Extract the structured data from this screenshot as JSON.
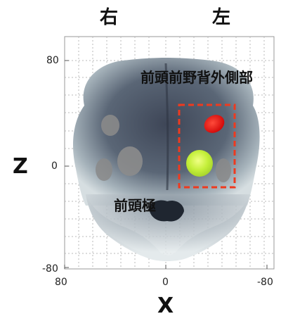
{
  "labels": {
    "right_side": "右",
    "left_side": "左",
    "dlpfc": "前頭前野背外側部",
    "frontal_pole": "前頭極",
    "z_axis": "Z",
    "x_axis": "X"
  },
  "ticks": {
    "y": [
      "80",
      "0",
      "-80"
    ],
    "x": [
      "80",
      "0",
      "-80"
    ]
  },
  "highlight": {
    "box_color": "#e8331f",
    "red_blob": "#e01010",
    "green_blob": "#c9f23a"
  }
}
